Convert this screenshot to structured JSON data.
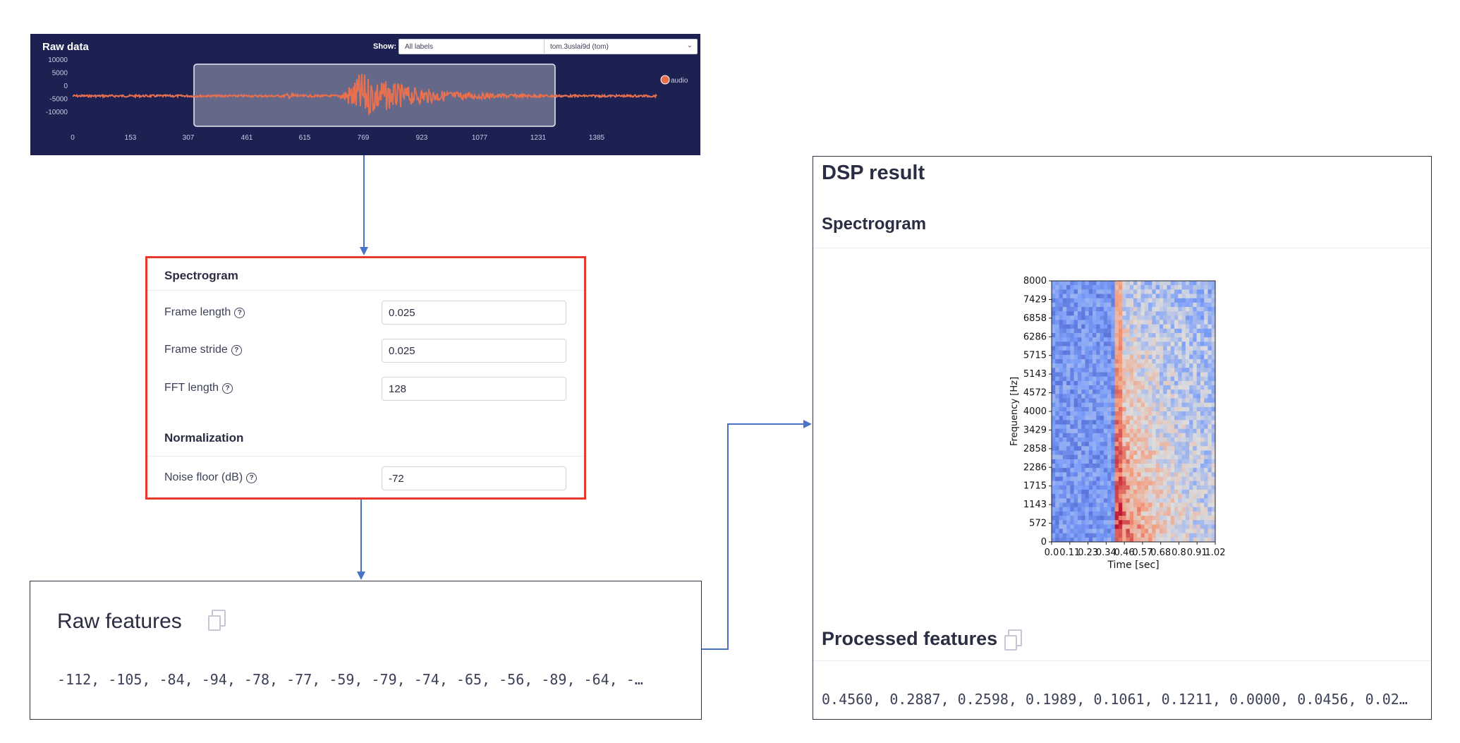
{
  "raw_data": {
    "title": "Raw data",
    "show_label": "Show:",
    "labels_select": "All labels",
    "sample_select": "tom.3uslai9d (tom)",
    "legend_label": "audio",
    "y_ticks": [
      "10000",
      "5000",
      "0",
      "-5000",
      "-10000"
    ],
    "x_ticks": [
      "0",
      "153",
      "307",
      "461",
      "615",
      "769",
      "923",
      "1077",
      "1231",
      "1385"
    ],
    "colors": {
      "background": "#1c2152",
      "waveform": "#e8704f"
    }
  },
  "spectrogram_params": {
    "section_title": "Spectrogram",
    "fields": [
      {
        "label": "Frame length",
        "value": "0.025"
      },
      {
        "label": "Frame stride",
        "value": "0.025"
      },
      {
        "label": "FFT length",
        "value": "128"
      }
    ],
    "normalization_title": "Normalization",
    "noise_floor": {
      "label": "Noise floor (dB)",
      "value": "-72"
    },
    "highlight_color": "#e5392b"
  },
  "raw_features": {
    "title": "Raw features",
    "values": "-112, -105, -84, -94, -78, -77, -59, -79, -74, -65, -56, -89, -64, -…"
  },
  "dsp_result": {
    "title": "DSP result",
    "spectrogram_title": "Spectrogram",
    "processed_title": "Processed features",
    "processed_values": "0.4560, 0.2887, 0.2598, 0.1989, 0.1061, 0.1211, 0.0000, 0.0456, 0.02…"
  },
  "chart_data": {
    "type": "heatmap",
    "xlabel": "Time [sec]",
    "ylabel": "Frequency [Hz]",
    "x_ticks": [
      "0.0",
      "0.11",
      "0.23",
      "0.34",
      "0.46",
      "0.57",
      "0.68",
      "0.8",
      "0.91",
      "1.02"
    ],
    "y_ticks": [
      "8000",
      "7429",
      "6858",
      "6286",
      "5715",
      "5143",
      "4572",
      "4000",
      "3429",
      "2858",
      "2286",
      "1715",
      "1143",
      "572",
      "0"
    ],
    "xlim": [
      0,
      1.02
    ],
    "ylim": [
      0,
      8000
    ],
    "colormap": "coolwarm",
    "description": "Low energy (blue) before ~0.4 s, broadband onset at ~0.4 s, warm energy concentrated at low frequencies after onset"
  },
  "connector_color": "#4a72c6"
}
